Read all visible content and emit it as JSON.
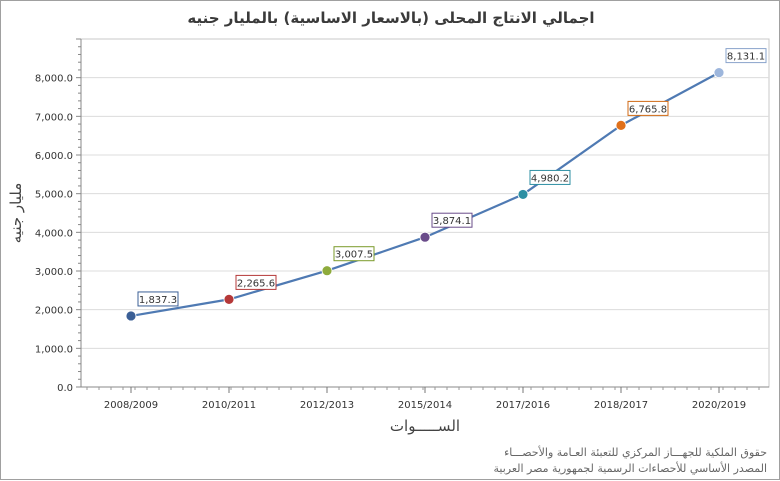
{
  "chart_data": {
    "type": "line",
    "title": "اجمالي  الانتاج  المحلى (بالاسعار  الاساسية) بالمليار  جنيه",
    "xlabel": "الســـــوات",
    "ylabel": "مليار جنيه",
    "ylim": [
      0,
      9000
    ],
    "y_ticks": [
      0,
      1000,
      2000,
      3000,
      4000,
      5000,
      6000,
      7000,
      8000
    ],
    "y_tick_labels": [
      "0.0",
      "1,000.0",
      "2,000.0",
      "3,000.0",
      "4,000.0",
      "5,000.0",
      "6,000.0",
      "7,000.0",
      "8,000.0"
    ],
    "grid": true,
    "categories": [
      "2008/2009",
      "2010/2011",
      "2012/2013",
      "2015/2014",
      "2017/2016",
      "2018/2017",
      "2020/2019"
    ],
    "values": [
      1837.3,
      2265.6,
      3007.5,
      3874.1,
      4980.2,
      6765.8,
      8131.1
    ],
    "data_labels": [
      "1,837.3",
      "2,265.6",
      "3,007.5",
      "3,874.1",
      "4,980.2",
      "6,765.8",
      "8,131.1"
    ],
    "line_color": "#4f7ab3",
    "point_colors": [
      "#3b5f96",
      "#b53838",
      "#8eab3c",
      "#6a4c8a",
      "#2d8fa3",
      "#e0701b",
      "#9db6dc"
    ],
    "label_colors": [
      "#3b5f96",
      "#b53838",
      "#7a9a2a",
      "#6a4c8a",
      "#2d8fa3",
      "#d06a14",
      "#8aa4cc"
    ]
  },
  "source": {
    "line1": "حقوق الملكية للجهـــاز المركزي للتعبئة العـامة والأحصـــاء",
    "line2": "المصدر الأساسي للأحصاءات الرسمية لجمهورية مصر العربية"
  }
}
